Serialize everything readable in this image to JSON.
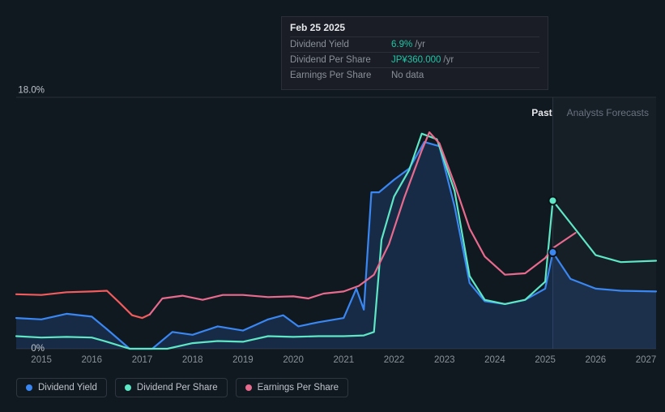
{
  "chart": {
    "type": "line",
    "background_color": "#101820",
    "grid_color": "#2a2f38",
    "text_color": "#c0c5cb",
    "muted_text_color": "#8a9199",
    "accent_color": "#1ec6a7",
    "y_axis": {
      "min": 0,
      "max": 18,
      "ticks": [
        {
          "value": 0,
          "label": "0%"
        },
        {
          "value": 18,
          "label": "18.0%"
        }
      ]
    },
    "x_axis": {
      "min": 2014.5,
      "max": 2027.2,
      "ticks": [
        2015,
        2016,
        2017,
        2018,
        2019,
        2020,
        2021,
        2022,
        2023,
        2024,
        2025,
        2026,
        2027
      ]
    },
    "forecast_start": 2025.15,
    "cursor_x": 2025.15,
    "tabs": {
      "past": "Past",
      "forecast": "Analysts Forecasts"
    },
    "tooltip": {
      "date": "Feb 25 2025",
      "rows": [
        {
          "label": "Dividend Yield",
          "value": "6.9%",
          "suffix": "/yr"
        },
        {
          "label": "Dividend Per Share",
          "value": "JP¥360.000",
          "suffix": "/yr"
        },
        {
          "label": "Earnings Per Share",
          "nodata": "No data"
        }
      ]
    },
    "series": [
      {
        "name": "Dividend Yield",
        "color": "#3a87f2",
        "fill": "rgba(58,135,242,0.18)",
        "line_width": 2.2,
        "marker_at": {
          "x": 2025.15,
          "y": 6.9
        },
        "data": [
          [
            2014.5,
            2.2
          ],
          [
            2015,
            2.1
          ],
          [
            2015.5,
            2.5
          ],
          [
            2016,
            2.3
          ],
          [
            2016.3,
            1.4
          ],
          [
            2016.75,
            0
          ],
          [
            2017.2,
            0
          ],
          [
            2017.6,
            1.2
          ],
          [
            2018,
            1.0
          ],
          [
            2018.5,
            1.6
          ],
          [
            2019,
            1.3
          ],
          [
            2019.5,
            2.1
          ],
          [
            2019.8,
            2.4
          ],
          [
            2020.1,
            1.6
          ],
          [
            2020.5,
            1.9
          ],
          [
            2021,
            2.2
          ],
          [
            2021.25,
            4.3
          ],
          [
            2021.4,
            2.8
          ],
          [
            2021.55,
            11.2
          ],
          [
            2021.7,
            11.2
          ],
          [
            2022.0,
            12.1
          ],
          [
            2022.3,
            12.9
          ],
          [
            2022.6,
            14.8
          ],
          [
            2022.9,
            14.5
          ],
          [
            2023.2,
            10.2
          ],
          [
            2023.5,
            4.7
          ],
          [
            2023.8,
            3.4
          ],
          [
            2024.2,
            3.2
          ],
          [
            2024.6,
            3.5
          ],
          [
            2025.0,
            4.3
          ],
          [
            2025.15,
            6.9
          ],
          [
            2025.5,
            5.0
          ],
          [
            2026,
            4.3
          ],
          [
            2026.5,
            4.15
          ],
          [
            2027.2,
            4.1
          ]
        ]
      },
      {
        "name": "Dividend Per Share",
        "color": "#5ee6c5",
        "line_width": 2.2,
        "marker_at": {
          "x": 2025.15,
          "y": 10.6
        },
        "data": [
          [
            2014.5,
            0.9
          ],
          [
            2015,
            0.8
          ],
          [
            2015.5,
            0.85
          ],
          [
            2016,
            0.8
          ],
          [
            2016.3,
            0.5
          ],
          [
            2016.75,
            0
          ],
          [
            2017.5,
            0
          ],
          [
            2018,
            0.4
          ],
          [
            2018.5,
            0.55
          ],
          [
            2019,
            0.5
          ],
          [
            2019.5,
            0.9
          ],
          [
            2020,
            0.85
          ],
          [
            2020.5,
            0.9
          ],
          [
            2021,
            0.9
          ],
          [
            2021.4,
            0.95
          ],
          [
            2021.6,
            1.2
          ],
          [
            2021.75,
            7.8
          ],
          [
            2022.0,
            10.9
          ],
          [
            2022.3,
            12.8
          ],
          [
            2022.55,
            15.4
          ],
          [
            2022.85,
            15.0
          ],
          [
            2023.2,
            11.3
          ],
          [
            2023.5,
            5.2
          ],
          [
            2023.8,
            3.5
          ],
          [
            2024.2,
            3.2
          ],
          [
            2024.6,
            3.5
          ],
          [
            2025.0,
            4.8
          ],
          [
            2025.15,
            10.6
          ],
          [
            2025.5,
            9.0
          ],
          [
            2026,
            6.7
          ],
          [
            2026.5,
            6.2
          ],
          [
            2027.2,
            6.3
          ]
        ]
      },
      {
        "name": "Earnings Per Share",
        "color_segments": [
          {
            "color": "#f25c5c",
            "from": 2014.5,
            "to": 2017.15
          },
          {
            "color": "#e86b8e",
            "from": 2017.15,
            "to": 2025.6
          }
        ],
        "line_width": 2.2,
        "data": [
          [
            2014.5,
            3.9
          ],
          [
            2015,
            3.85
          ],
          [
            2015.5,
            4.05
          ],
          [
            2016,
            4.1
          ],
          [
            2016.3,
            4.15
          ],
          [
            2016.55,
            3.3
          ],
          [
            2016.8,
            2.4
          ],
          [
            2017.0,
            2.2
          ],
          [
            2017.15,
            2.45
          ],
          [
            2017.4,
            3.6
          ],
          [
            2017.8,
            3.8
          ],
          [
            2018.2,
            3.5
          ],
          [
            2018.6,
            3.85
          ],
          [
            2019,
            3.85
          ],
          [
            2019.5,
            3.7
          ],
          [
            2020,
            3.75
          ],
          [
            2020.3,
            3.6
          ],
          [
            2020.6,
            3.95
          ],
          [
            2021,
            4.1
          ],
          [
            2021.3,
            4.5
          ],
          [
            2021.6,
            5.3
          ],
          [
            2021.9,
            7.5
          ],
          [
            2022.2,
            10.8
          ],
          [
            2022.55,
            14.2
          ],
          [
            2022.7,
            15.5
          ],
          [
            2022.9,
            14.7
          ],
          [
            2023.2,
            11.8
          ],
          [
            2023.5,
            8.6
          ],
          [
            2023.8,
            6.6
          ],
          [
            2024.2,
            5.3
          ],
          [
            2024.6,
            5.4
          ],
          [
            2025.0,
            6.5
          ],
          [
            2025.15,
            7.2
          ],
          [
            2025.6,
            8.3
          ]
        ]
      }
    ],
    "legend": [
      {
        "label": "Dividend Yield",
        "color": "#3a87f2"
      },
      {
        "label": "Dividend Per Share",
        "color": "#5ee6c5"
      },
      {
        "label": "Earnings Per Share",
        "color": "#e86b8e"
      }
    ]
  }
}
